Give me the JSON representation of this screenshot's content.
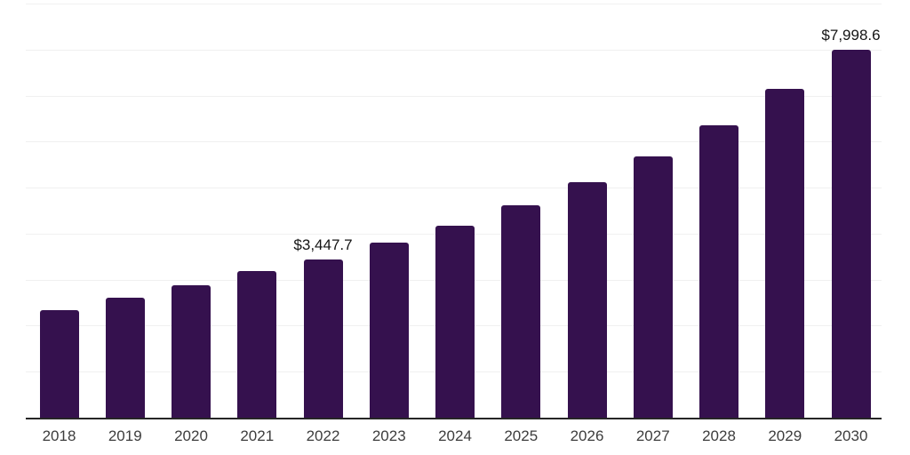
{
  "chart_data": {
    "type": "bar",
    "title": "",
    "xlabel": "",
    "ylabel": "",
    "categories": [
      "2018",
      "2019",
      "2020",
      "2021",
      "2022",
      "2023",
      "2024",
      "2025",
      "2026",
      "2027",
      "2028",
      "2029",
      "2030"
    ],
    "values": [
      2340,
      2610,
      2880,
      3190,
      3447.7,
      3800,
      4170,
      4620,
      5120,
      5680,
      6350,
      7150,
      7998.6
    ],
    "value_labels": {
      "2022": "$3,447.7",
      "2030": "$7,998.6"
    },
    "ylim": [
      0,
      9000
    ],
    "gridline_step": 1000,
    "grid": true,
    "legend": false,
    "y_tick_labels_shown": false
  },
  "style": {
    "bar_color": "#35114E",
    "gridline_color": "#f0f0f0",
    "axis_color": "#262626",
    "value_label_color": "#141414",
    "year_label_color": "#3d3d3d",
    "background_color": "#ffffff"
  }
}
